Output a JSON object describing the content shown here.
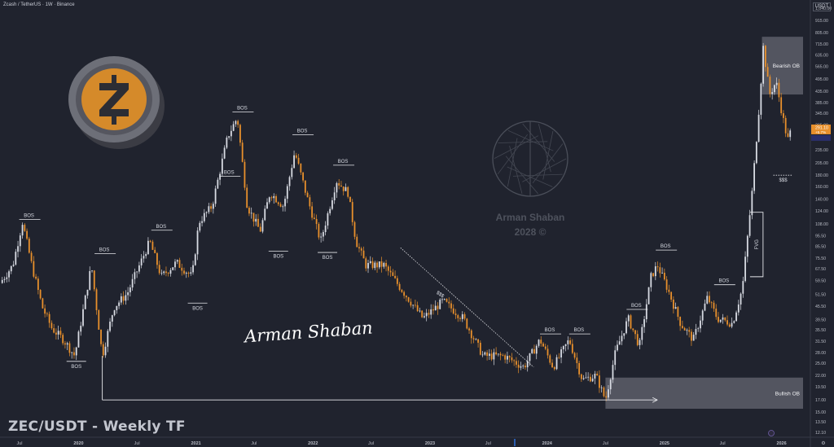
{
  "header": {
    "symbol_line": "Zcash / TetherUS · 1W · Binance",
    "currency": "USDT"
  },
  "pair_title": "ZEC/USDT - Weekly TF",
  "signature": "Arman Shaban",
  "watermark": {
    "name": "Arman Shaban",
    "year": "2028 ©"
  },
  "price_scale": {
    "labels": [
      "1,040.00",
      "915.00",
      "805.00",
      "715.00",
      "635.00",
      "565.00",
      "495.00",
      "435.00",
      "385.00",
      "345.00",
      "305.00",
      "265.00",
      "235.00",
      "205.00",
      "180.00",
      "160.00",
      "140.00",
      "124.00",
      "108.00",
      "95.50",
      "85.50",
      "75.50",
      "67.50",
      "59.50",
      "51.50",
      "45.50",
      "39.50",
      "35.50",
      "31.50",
      "28.00",
      "25.00",
      "22.00",
      "19.50",
      "17.00",
      "15.00",
      "13.50",
      "12.10"
    ],
    "current_price": "291.10",
    "current_change": "+5.7%"
  },
  "time_axis": [
    "Jul",
    "2020",
    "Jul",
    "2021",
    "Jul",
    "2022",
    "Jul",
    "2023",
    "Jul",
    "2024",
    "Jul",
    "2025",
    "Jul",
    "2026"
  ],
  "colors": {
    "background": "#20232e",
    "bull_candle": "#d8dbe3",
    "bear_candle": "#e8902c",
    "ob_zone": "#676a74",
    "current_price_tag": "#e8902c"
  },
  "chart_data": {
    "type": "candlestick",
    "title": "ZEC/USDT - Weekly TF",
    "y_scale": "log",
    "ylim": [
      12.1,
      1040
    ],
    "x_range": [
      "2019-05",
      "2026-02"
    ],
    "price_path": [
      {
        "t": "2019-05-01",
        "p": 58
      },
      {
        "t": "2019-06-10",
        "p": 70
      },
      {
        "t": "2019-07-10",
        "p": 110
      },
      {
        "t": "2019-08-10",
        "p": 68
      },
      {
        "t": "2019-09-10",
        "p": 45
      },
      {
        "t": "2019-10-10",
        "p": 36
      },
      {
        "t": "2019-11-15",
        "p": 32
      },
      {
        "t": "2019-12-20",
        "p": 27
      },
      {
        "t": "2020-02-10",
        "p": 70
      },
      {
        "t": "2020-03-15",
        "p": 27
      },
      {
        "t": "2020-04-20",
        "p": 45
      },
      {
        "t": "2020-06-01",
        "p": 52
      },
      {
        "t": "2020-08-10",
        "p": 90
      },
      {
        "t": "2020-09-15",
        "p": 62
      },
      {
        "t": "2020-11-01",
        "p": 72
      },
      {
        "t": "2020-12-20",
        "p": 62
      },
      {
        "t": "2021-01-10",
        "p": 110
      },
      {
        "t": "2021-02-20",
        "p": 130
      },
      {
        "t": "2021-04-10",
        "p": 270
      },
      {
        "t": "2021-05-10",
        "p": 330
      },
      {
        "t": "2021-06-10",
        "p": 130
      },
      {
        "t": "2021-07-20",
        "p": 100
      },
      {
        "t": "2021-08-20",
        "p": 150
      },
      {
        "t": "2021-10-01",
        "p": 130
      },
      {
        "t": "2021-11-05",
        "p": 230
      },
      {
        "t": "2021-12-15",
        "p": 140
      },
      {
        "t": "2022-01-25",
        "p": 90
      },
      {
        "t": "2022-03-15",
        "p": 170
      },
      {
        "t": "2022-04-20",
        "p": 150
      },
      {
        "t": "2022-05-15",
        "p": 90
      },
      {
        "t": "2022-06-15",
        "p": 70
      },
      {
        "t": "2022-08-10",
        "p": 70
      },
      {
        "t": "2022-10-01",
        "p": 55
      },
      {
        "t": "2022-12-10",
        "p": 40
      },
      {
        "t": "2023-02-10",
        "p": 48
      },
      {
        "t": "2023-04-15",
        "p": 40
      },
      {
        "t": "2023-06-15",
        "p": 27
      },
      {
        "t": "2023-08-20",
        "p": 27
      },
      {
        "t": "2023-10-20",
        "p": 24
      },
      {
        "t": "2023-12-10",
        "p": 32
      },
      {
        "t": "2024-01-20",
        "p": 24
      },
      {
        "t": "2024-03-10",
        "p": 32
      },
      {
        "t": "2024-04-20",
        "p": 21
      },
      {
        "t": "2024-06-01",
        "p": 22
      },
      {
        "t": "2024-07-01",
        "p": 17
      },
      {
        "t": "2024-08-01",
        "p": 28
      },
      {
        "t": "2024-09-10",
        "p": 40
      },
      {
        "t": "2024-10-15",
        "p": 30
      },
      {
        "t": "2024-11-20",
        "p": 62
      },
      {
        "t": "2024-12-10",
        "p": 70
      },
      {
        "t": "2025-01-10",
        "p": 55
      },
      {
        "t": "2025-02-20",
        "p": 38
      },
      {
        "t": "2025-04-01",
        "p": 32
      },
      {
        "t": "2025-05-15",
        "p": 50
      },
      {
        "t": "2025-06-15",
        "p": 40
      },
      {
        "t": "2025-08-01",
        "p": 38
      },
      {
        "t": "2025-09-01",
        "p": 55
      },
      {
        "t": "2025-10-01",
        "p": 150
      },
      {
        "t": "2025-10-25",
        "p": 400
      },
      {
        "t": "2025-11-05",
        "p": 690
      },
      {
        "t": "2025-11-25",
        "p": 420
      },
      {
        "t": "2025-12-15",
        "p": 480
      },
      {
        "t": "2026-01-05",
        "p": 330
      },
      {
        "t": "2026-01-20",
        "p": 260
      },
      {
        "t": "2026-02-01",
        "p": 291
      }
    ],
    "annotations": [
      {
        "label": "BOS",
        "t": "2019-07-10",
        "p": 113,
        "side": "above"
      },
      {
        "label": "BOS",
        "t": "2019-12-20",
        "p": 25.5,
        "side": "below"
      },
      {
        "label": "BOS",
        "t": "2020-03-01",
        "p": 79,
        "side": "above"
      },
      {
        "label": "BOS",
        "t": "2020-08-25",
        "p": 101,
        "side": "above"
      },
      {
        "label": "BOS",
        "t": "2021-01-01",
        "p": 47,
        "side": "below"
      },
      {
        "label": "BOS",
        "t": "2021-03-25",
        "p": 178,
        "side": "above"
      },
      {
        "label": "BOS",
        "t": "2021-05-05",
        "p": 350,
        "side": "above"
      },
      {
        "label": "BOS",
        "t": "2021-09-10",
        "p": 81,
        "side": "below"
      },
      {
        "label": "BOS",
        "t": "2021-11-08",
        "p": 275,
        "side": "above"
      },
      {
        "label": "BOS",
        "t": "2022-02-10",
        "p": 80,
        "side": "below"
      },
      {
        "label": "BOS",
        "t": "2022-03-15",
        "p": 200,
        "side": "above"
      },
      {
        "label": "$$$",
        "t": "2023-01-15",
        "p": 50,
        "side": "trendline"
      },
      {
        "label": "BOS",
        "t": "2023-12-20",
        "p": 34,
        "side": "above"
      },
      {
        "label": "BOS",
        "t": "2024-03-20",
        "p": 34,
        "side": "above"
      },
      {
        "label": "BOS",
        "t": "2024-09-15",
        "p": 44,
        "side": "above"
      },
      {
        "label": "BOS",
        "t": "2024-12-15",
        "p": 82,
        "side": "above"
      },
      {
        "label": "BOS",
        "t": "2025-06-15",
        "p": 57,
        "side": "above"
      },
      {
        "label": "FVG",
        "t": "2025-10-10",
        "p": 90,
        "side": "zone"
      },
      {
        "label": "$$$",
        "t": "2026-01-01",
        "p": 180,
        "side": "below"
      }
    ],
    "zones": [
      {
        "label": "Bearish OB",
        "x0": "2025-11-01",
        "x1": "2026-04-01",
        "y0": 420,
        "y1": 770
      },
      {
        "label": "Bullish OB",
        "x0": "2024-07-01",
        "x1": "2026-04-01",
        "y0": 15.5,
        "y1": 21.5
      }
    ],
    "lines": [
      {
        "kind": "arrow",
        "from": {
          "t": "2020-03-15",
          "p": 17
        },
        "to": {
          "t": "2024-12-10",
          "p": 17
        }
      },
      {
        "kind": "dotted",
        "from": {
          "t": "2022-10-01",
          "p": 84
        },
        "to": {
          "t": "2023-11-20",
          "p": 24
        }
      }
    ]
  }
}
